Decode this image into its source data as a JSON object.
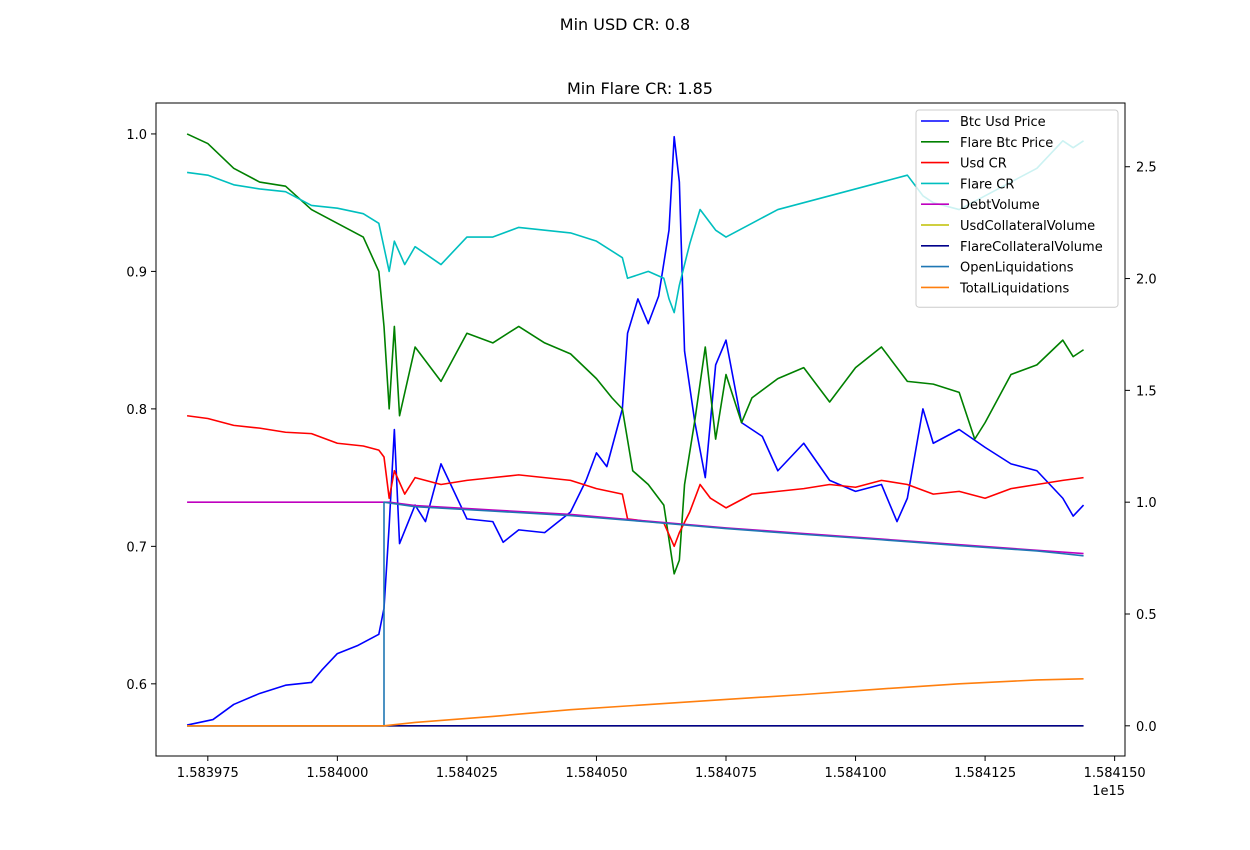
{
  "figure": {
    "suptitle": "Min USD CR: 0.8",
    "title": "Min Flare CR: 1.85",
    "x_offset_label": "1e15"
  },
  "chart_data": {
    "type": "line",
    "x_axis": {
      "ticks": [
        1.583975,
        1.584,
        1.584025,
        1.58405,
        1.584075,
        1.5841,
        1.584125,
        1.58415
      ],
      "tick_labels": [
        "1.583975",
        "1.584000",
        "1.584025",
        "1.584050",
        "1.584075",
        "1.584100",
        "1.584125",
        "1.584150"
      ],
      "xlim": [
        1.583965,
        1.584152
      ],
      "multiplier": "1e15"
    },
    "y_left": {
      "ticks": [
        0.6,
        0.7,
        0.8,
        0.9,
        1.0
      ],
      "tick_labels": [
        "0.6",
        "0.7",
        "0.8",
        "0.9",
        "1.0"
      ],
      "ylim": [
        0.5475,
        1.0225
      ]
    },
    "y_right": {
      "ticks": [
        0.0,
        0.5,
        1.0,
        1.5,
        2.0,
        2.5
      ],
      "tick_labels": [
        "0.0",
        "0.5",
        "1.0",
        "1.5",
        "2.0",
        "2.5"
      ],
      "ylim": [
        -0.135,
        2.785
      ]
    },
    "grid": false,
    "legend_position": "top-right",
    "series": [
      {
        "name": "Btc Usd Price",
        "color": "#0000ff",
        "axis": "left",
        "points": [
          [
            1.583971,
            0.57
          ],
          [
            1.583976,
            0.574
          ],
          [
            1.58398,
            0.585
          ],
          [
            1.583985,
            0.593
          ],
          [
            1.58399,
            0.599
          ],
          [
            1.583995,
            0.601
          ],
          [
            1.583997,
            0.61
          ],
          [
            1.584,
            0.622
          ],
          [
            1.584004,
            0.628
          ],
          [
            1.584008,
            0.636
          ],
          [
            1.584009,
            0.655
          ],
          [
            1.58401,
            0.715
          ],
          [
            1.584011,
            0.785
          ],
          [
            1.584012,
            0.702
          ],
          [
            1.584015,
            0.73
          ],
          [
            1.584017,
            0.718
          ],
          [
            1.58402,
            0.76
          ],
          [
            1.584025,
            0.72
          ],
          [
            1.58403,
            0.718
          ],
          [
            1.584032,
            0.703
          ],
          [
            1.584035,
            0.712
          ],
          [
            1.58404,
            0.71
          ],
          [
            1.584045,
            0.725
          ],
          [
            1.584048,
            0.748
          ],
          [
            1.58405,
            0.768
          ],
          [
            1.584052,
            0.758
          ],
          [
            1.584055,
            0.8
          ],
          [
            1.584056,
            0.855
          ],
          [
            1.584058,
            0.88
          ],
          [
            1.58406,
            0.862
          ],
          [
            1.584062,
            0.882
          ],
          [
            1.584064,
            0.93
          ],
          [
            1.584065,
            0.998
          ],
          [
            1.584066,
            0.965
          ],
          [
            1.584067,
            0.842
          ],
          [
            1.584069,
            0.79
          ],
          [
            1.584071,
            0.75
          ],
          [
            1.584073,
            0.832
          ],
          [
            1.584075,
            0.85
          ],
          [
            1.584078,
            0.79
          ],
          [
            1.584082,
            0.78
          ],
          [
            1.584085,
            0.755
          ],
          [
            1.58409,
            0.775
          ],
          [
            1.584095,
            0.748
          ],
          [
            1.5841,
            0.74
          ],
          [
            1.584105,
            0.745
          ],
          [
            1.584108,
            0.718
          ],
          [
            1.58411,
            0.735
          ],
          [
            1.584113,
            0.8
          ],
          [
            1.584115,
            0.775
          ],
          [
            1.58412,
            0.785
          ],
          [
            1.584125,
            0.772
          ],
          [
            1.58413,
            0.76
          ],
          [
            1.584135,
            0.755
          ],
          [
            1.58414,
            0.735
          ],
          [
            1.584142,
            0.722
          ],
          [
            1.584144,
            0.73
          ]
        ]
      },
      {
        "name": "Flare Btc Price",
        "color": "#008000",
        "axis": "left",
        "points": [
          [
            1.583971,
            1.0
          ],
          [
            1.583975,
            0.993
          ],
          [
            1.58398,
            0.975
          ],
          [
            1.583985,
            0.965
          ],
          [
            1.58399,
            0.962
          ],
          [
            1.583995,
            0.945
          ],
          [
            1.584,
            0.935
          ],
          [
            1.584005,
            0.925
          ],
          [
            1.584008,
            0.9
          ],
          [
            1.584009,
            0.86
          ],
          [
            1.58401,
            0.8
          ],
          [
            1.584011,
            0.86
          ],
          [
            1.584012,
            0.795
          ],
          [
            1.584015,
            0.845
          ],
          [
            1.584018,
            0.83
          ],
          [
            1.58402,
            0.82
          ],
          [
            1.584025,
            0.855
          ],
          [
            1.58403,
            0.848
          ],
          [
            1.584035,
            0.86
          ],
          [
            1.58404,
            0.848
          ],
          [
            1.584045,
            0.84
          ],
          [
            1.58405,
            0.822
          ],
          [
            1.584053,
            0.808
          ],
          [
            1.584055,
            0.8
          ],
          [
            1.584057,
            0.755
          ],
          [
            1.58406,
            0.745
          ],
          [
            1.584063,
            0.73
          ],
          [
            1.584065,
            0.68
          ],
          [
            1.584066,
            0.69
          ],
          [
            1.584067,
            0.745
          ],
          [
            1.584069,
            0.792
          ],
          [
            1.584071,
            0.845
          ],
          [
            1.584073,
            0.778
          ],
          [
            1.584075,
            0.825
          ],
          [
            1.584078,
            0.79
          ],
          [
            1.58408,
            0.808
          ],
          [
            1.584085,
            0.822
          ],
          [
            1.58409,
            0.83
          ],
          [
            1.584095,
            0.805
          ],
          [
            1.5841,
            0.83
          ],
          [
            1.584105,
            0.845
          ],
          [
            1.58411,
            0.82
          ],
          [
            1.584115,
            0.818
          ],
          [
            1.58412,
            0.812
          ],
          [
            1.584123,
            0.778
          ],
          [
            1.584125,
            0.79
          ],
          [
            1.58413,
            0.825
          ],
          [
            1.584135,
            0.832
          ],
          [
            1.58414,
            0.85
          ],
          [
            1.584142,
            0.838
          ],
          [
            1.584144,
            0.843
          ]
        ]
      },
      {
        "name": "Usd CR",
        "color": "#ff0000",
        "axis": "left",
        "points": [
          [
            1.583971,
            0.795
          ],
          [
            1.583975,
            0.793
          ],
          [
            1.58398,
            0.788
          ],
          [
            1.583985,
            0.786
          ],
          [
            1.58399,
            0.783
          ],
          [
            1.583995,
            0.782
          ],
          [
            1.584,
            0.775
          ],
          [
            1.584005,
            0.773
          ],
          [
            1.584008,
            0.77
          ],
          [
            1.584009,
            0.765
          ],
          [
            1.58401,
            0.735
          ],
          [
            1.584011,
            0.755
          ],
          [
            1.584013,
            0.738
          ],
          [
            1.584015,
            0.75
          ],
          [
            1.58402,
            0.745
          ],
          [
            1.584025,
            0.748
          ],
          [
            1.58403,
            0.75
          ],
          [
            1.584035,
            0.752
          ],
          [
            1.58404,
            0.75
          ],
          [
            1.584045,
            0.748
          ],
          [
            1.58405,
            0.742
          ],
          [
            1.584055,
            0.738
          ],
          [
            1.584056,
            0.72
          ],
          [
            1.58406,
            0.718
          ],
          [
            1.584063,
            0.717
          ],
          [
            1.584065,
            0.7
          ],
          [
            1.584066,
            0.71
          ],
          [
            1.584068,
            0.725
          ],
          [
            1.58407,
            0.745
          ],
          [
            1.584072,
            0.735
          ],
          [
            1.584075,
            0.728
          ],
          [
            1.58408,
            0.738
          ],
          [
            1.584085,
            0.74
          ],
          [
            1.58409,
            0.742
          ],
          [
            1.584095,
            0.745
          ],
          [
            1.5841,
            0.743
          ],
          [
            1.584105,
            0.748
          ],
          [
            1.58411,
            0.745
          ],
          [
            1.584115,
            0.738
          ],
          [
            1.58412,
            0.74
          ],
          [
            1.584125,
            0.735
          ],
          [
            1.58413,
            0.742
          ],
          [
            1.584135,
            0.745
          ],
          [
            1.58414,
            0.748
          ],
          [
            1.584144,
            0.75
          ]
        ]
      },
      {
        "name": "Flare CR",
        "color": "#00bfbf",
        "axis": "left",
        "points": [
          [
            1.583971,
            0.972
          ],
          [
            1.583975,
            0.97
          ],
          [
            1.58398,
            0.963
          ],
          [
            1.583985,
            0.96
          ],
          [
            1.58399,
            0.958
          ],
          [
            1.583995,
            0.948
          ],
          [
            1.584,
            0.946
          ],
          [
            1.584005,
            0.942
          ],
          [
            1.584008,
            0.935
          ],
          [
            1.58401,
            0.9
          ],
          [
            1.584011,
            0.922
          ],
          [
            1.584013,
            0.905
          ],
          [
            1.584015,
            0.918
          ],
          [
            1.58402,
            0.905
          ],
          [
            1.584025,
            0.925
          ],
          [
            1.58403,
            0.925
          ],
          [
            1.584035,
            0.932
          ],
          [
            1.58404,
            0.93
          ],
          [
            1.584045,
            0.928
          ],
          [
            1.58405,
            0.922
          ],
          [
            1.584055,
            0.91
          ],
          [
            1.584056,
            0.895
          ],
          [
            1.58406,
            0.9
          ],
          [
            1.584063,
            0.895
          ],
          [
            1.584064,
            0.88
          ],
          [
            1.584065,
            0.87
          ],
          [
            1.584066,
            0.89
          ],
          [
            1.584068,
            0.92
          ],
          [
            1.58407,
            0.945
          ],
          [
            1.584073,
            0.93
          ],
          [
            1.584075,
            0.925
          ],
          [
            1.58408,
            0.935
          ],
          [
            1.584085,
            0.945
          ],
          [
            1.58409,
            0.95
          ],
          [
            1.584095,
            0.955
          ],
          [
            1.5841,
            0.96
          ],
          [
            1.584105,
            0.965
          ],
          [
            1.58411,
            0.97
          ],
          [
            1.584113,
            0.955
          ],
          [
            1.584115,
            0.95
          ],
          [
            1.58412,
            0.945
          ],
          [
            1.584125,
            0.955
          ],
          [
            1.58413,
            0.965
          ],
          [
            1.584135,
            0.975
          ],
          [
            1.58414,
            0.995
          ],
          [
            1.584142,
            0.99
          ],
          [
            1.584144,
            0.995
          ]
        ]
      },
      {
        "name": "DebtVolume",
        "color": "#bf00bf",
        "axis": "right",
        "points": [
          [
            1.583971,
            1.0
          ],
          [
            1.58401,
            1.0
          ],
          [
            1.584015,
            0.985
          ],
          [
            1.58403,
            0.965
          ],
          [
            1.584045,
            0.945
          ],
          [
            1.58406,
            0.915
          ],
          [
            1.584075,
            0.885
          ],
          [
            1.58409,
            0.86
          ],
          [
            1.584105,
            0.835
          ],
          [
            1.58412,
            0.81
          ],
          [
            1.584135,
            0.785
          ],
          [
            1.584144,
            0.77
          ]
        ]
      },
      {
        "name": "UsdCollateralVolume",
        "color": "#bfbf00",
        "axis": "right",
        "points": [
          [
            1.583971,
            0.0
          ],
          [
            1.584144,
            0.0
          ]
        ]
      },
      {
        "name": "FlareCollateralVolume",
        "color": "#00008b",
        "axis": "right",
        "points": [
          [
            1.583971,
            0.0
          ],
          [
            1.584144,
            0.0
          ]
        ]
      },
      {
        "name": "OpenLiquidations",
        "color": "#1f77b4",
        "axis": "right",
        "points": [
          [
            1.583971,
            0.0
          ],
          [
            1.584009,
            0.0
          ],
          [
            1.584009,
            1.0
          ],
          [
            1.584015,
            0.98
          ],
          [
            1.58403,
            0.96
          ],
          [
            1.584045,
            0.94
          ],
          [
            1.58406,
            0.912
          ],
          [
            1.584075,
            0.882
          ],
          [
            1.58409,
            0.856
          ],
          [
            1.584105,
            0.832
          ],
          [
            1.58412,
            0.806
          ],
          [
            1.584135,
            0.782
          ],
          [
            1.58414,
            0.77
          ],
          [
            1.584144,
            0.76
          ]
        ]
      },
      {
        "name": "TotalLiquidations",
        "color": "#ff7f0e",
        "axis": "right",
        "points": [
          [
            1.583971,
            0.0
          ],
          [
            1.584009,
            0.0
          ],
          [
            1.584015,
            0.015
          ],
          [
            1.58403,
            0.042
          ],
          [
            1.584045,
            0.072
          ],
          [
            1.58406,
            0.095
          ],
          [
            1.584075,
            0.118
          ],
          [
            1.58409,
            0.14
          ],
          [
            1.584105,
            0.165
          ],
          [
            1.58412,
            0.188
          ],
          [
            1.584135,
            0.205
          ],
          [
            1.584144,
            0.21
          ]
        ]
      }
    ]
  }
}
